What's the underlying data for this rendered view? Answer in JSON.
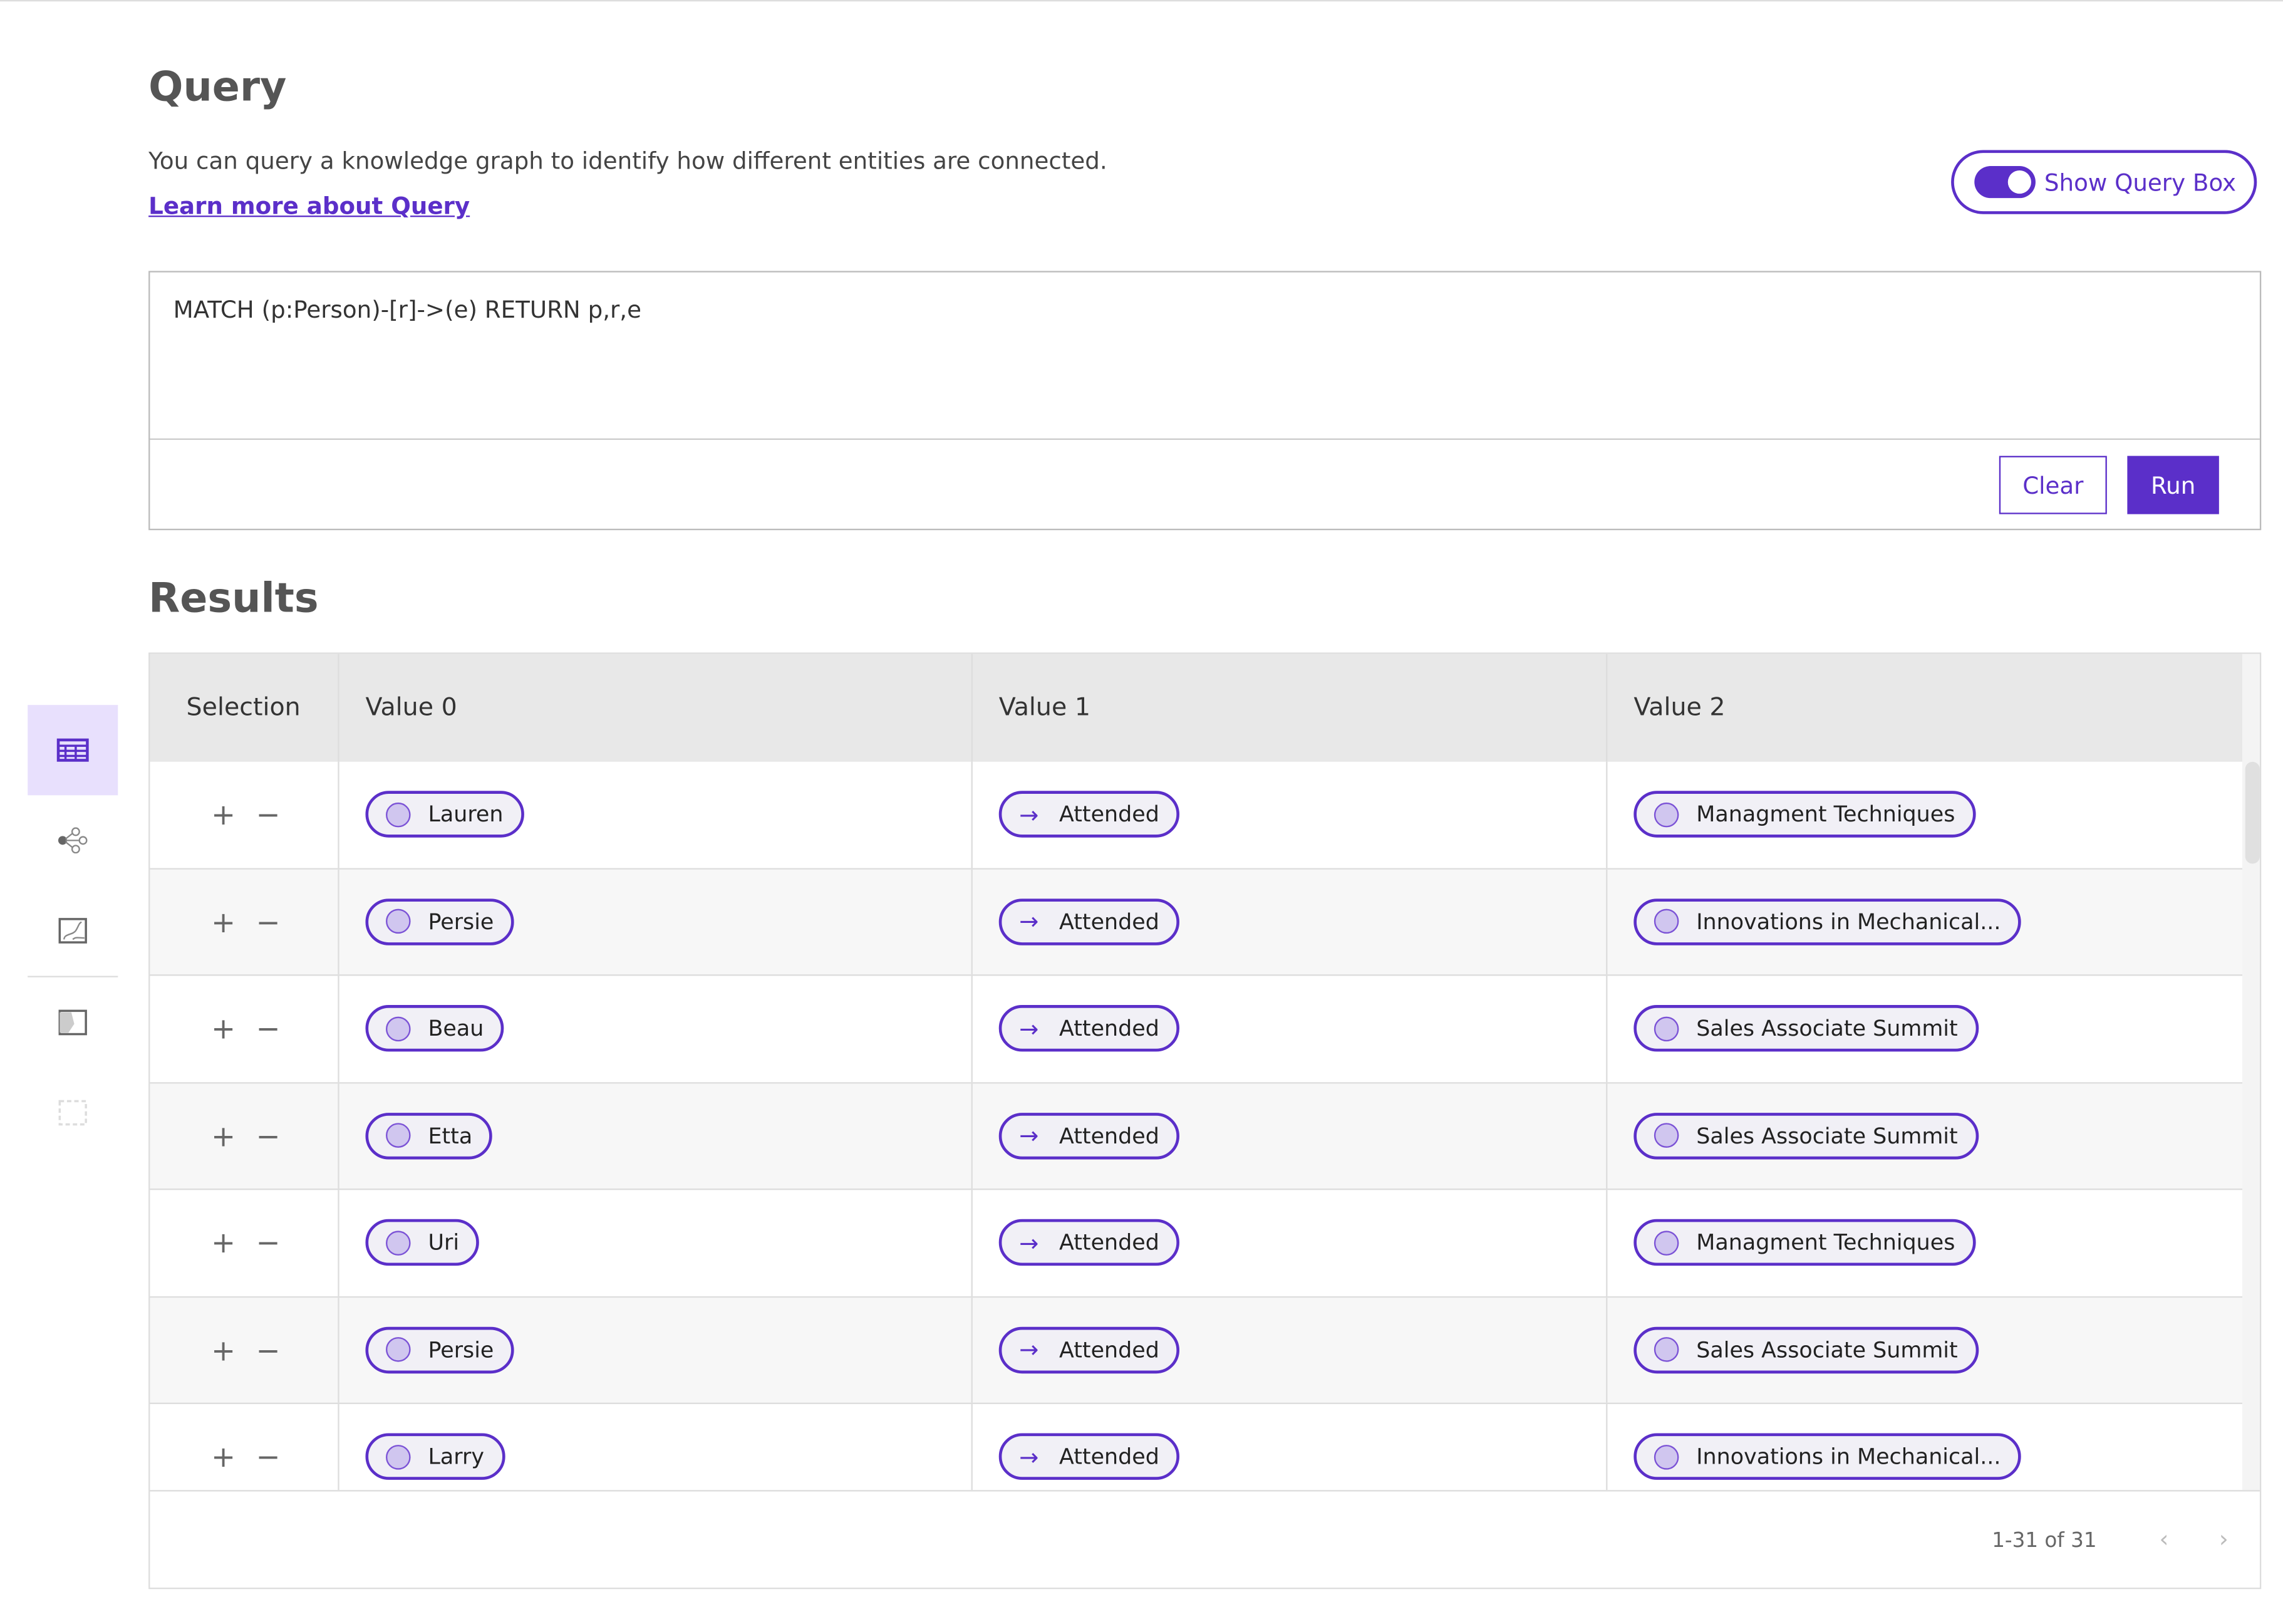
{
  "header": {
    "title": "Query",
    "description": "You can query a knowledge graph to identify how different entities are connected.",
    "learn_more": "Learn more about Query",
    "toggle_label": "Show Query Box",
    "toggle_on": true
  },
  "query": {
    "text": "MATCH (p:Person)-[r]->(e) RETURN p,r,e",
    "clear_label": "Clear",
    "run_label": "Run"
  },
  "results": {
    "title": "Results",
    "columns": [
      "Selection",
      "Value 0",
      "Value 1",
      "Value 2"
    ],
    "rows": [
      {
        "v0": "Lauren",
        "v1": "Attended",
        "v2": "Managment Techniques"
      },
      {
        "v0": "Persie",
        "v1": "Attended",
        "v2": "Innovations in Mechanical..."
      },
      {
        "v0": "Beau",
        "v1": "Attended",
        "v2": "Sales Associate Summit"
      },
      {
        "v0": "Etta",
        "v1": "Attended",
        "v2": "Sales Associate Summit"
      },
      {
        "v0": "Uri",
        "v1": "Attended",
        "v2": "Managment Techniques"
      },
      {
        "v0": "Persie",
        "v1": "Attended",
        "v2": "Sales Associate Summit"
      },
      {
        "v0": "Larry",
        "v1": "Attended",
        "v2": "Innovations in Mechanical..."
      }
    ],
    "pagination": "1-31 of 31",
    "plus": "+",
    "minus": "−",
    "arrow": "→"
  },
  "sidebar": {
    "items": [
      "table-view-icon",
      "graph-view-icon",
      "chart-view-icon",
      "map-view-icon",
      "disabled-view-icon"
    ],
    "active": "table-view-icon"
  },
  "colors": {
    "accent": "#5b2fc9",
    "active_bg": "#e8e0fd",
    "chip_bg": "#f1f0f6"
  }
}
